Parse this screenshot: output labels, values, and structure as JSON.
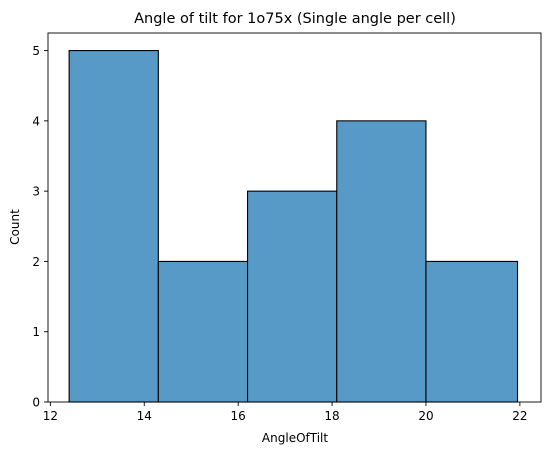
{
  "chart_data": {
    "type": "bar",
    "subtype": "histogram",
    "title": "Angle of tilt for 1o75x (Single angle per cell)",
    "xlabel": "AngleOfTilt",
    "ylabel": "Count",
    "bins": [
      {
        "x0": 12.4,
        "x1": 14.3,
        "count": 5
      },
      {
        "x0": 14.3,
        "x1": 16.2,
        "count": 2
      },
      {
        "x0": 16.2,
        "x1": 18.1,
        "count": 3
      },
      {
        "x0": 18.1,
        "x1": 20.0,
        "count": 4
      },
      {
        "x0": 20.0,
        "x1": 21.95,
        "count": 2
      }
    ],
    "xlim": [
      11.95,
      22.45
    ],
    "ylim": [
      0,
      5.25
    ],
    "xticks": [
      12,
      14,
      16,
      18,
      20,
      22
    ],
    "yticks": [
      0,
      1,
      2,
      3,
      4,
      5
    ],
    "grid": false,
    "bar_color": "#5799c7",
    "edge_color": "#000000"
  }
}
